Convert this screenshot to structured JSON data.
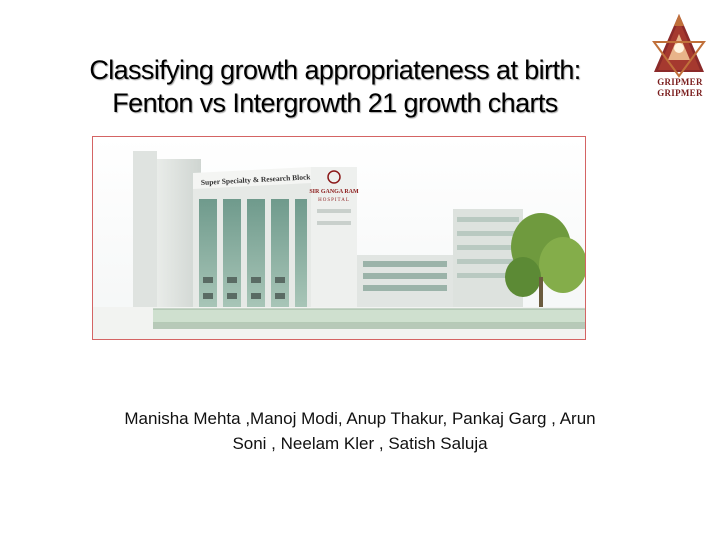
{
  "slide": {
    "title_lines": [
      "Classifying growth appropriateness at birth:",
      "Fenton  vs Intergrowth 21 growth charts"
    ],
    "logo": {
      "icon": "gripmer-logo-icon",
      "text_lines": [
        "GRIPMER",
        "GRIPMER"
      ],
      "colors": {
        "primary": "#8b2a2a",
        "secondary": "#c0703a"
      }
    },
    "photo": {
      "icon": "hospital-building-photo",
      "sign_main": "Super Specialty & Research Block",
      "sign_hospital_line1": "SIR GANGA RAM",
      "sign_hospital_line2": "HOSPITAL",
      "border_color": "#d46464"
    },
    "authors_lines": [
      "Manisha Mehta ,Manoj Modi, Anup Thakur, Pankaj Garg , Arun",
      "Soni , Neelam Kler , Satish Saluja"
    ]
  }
}
